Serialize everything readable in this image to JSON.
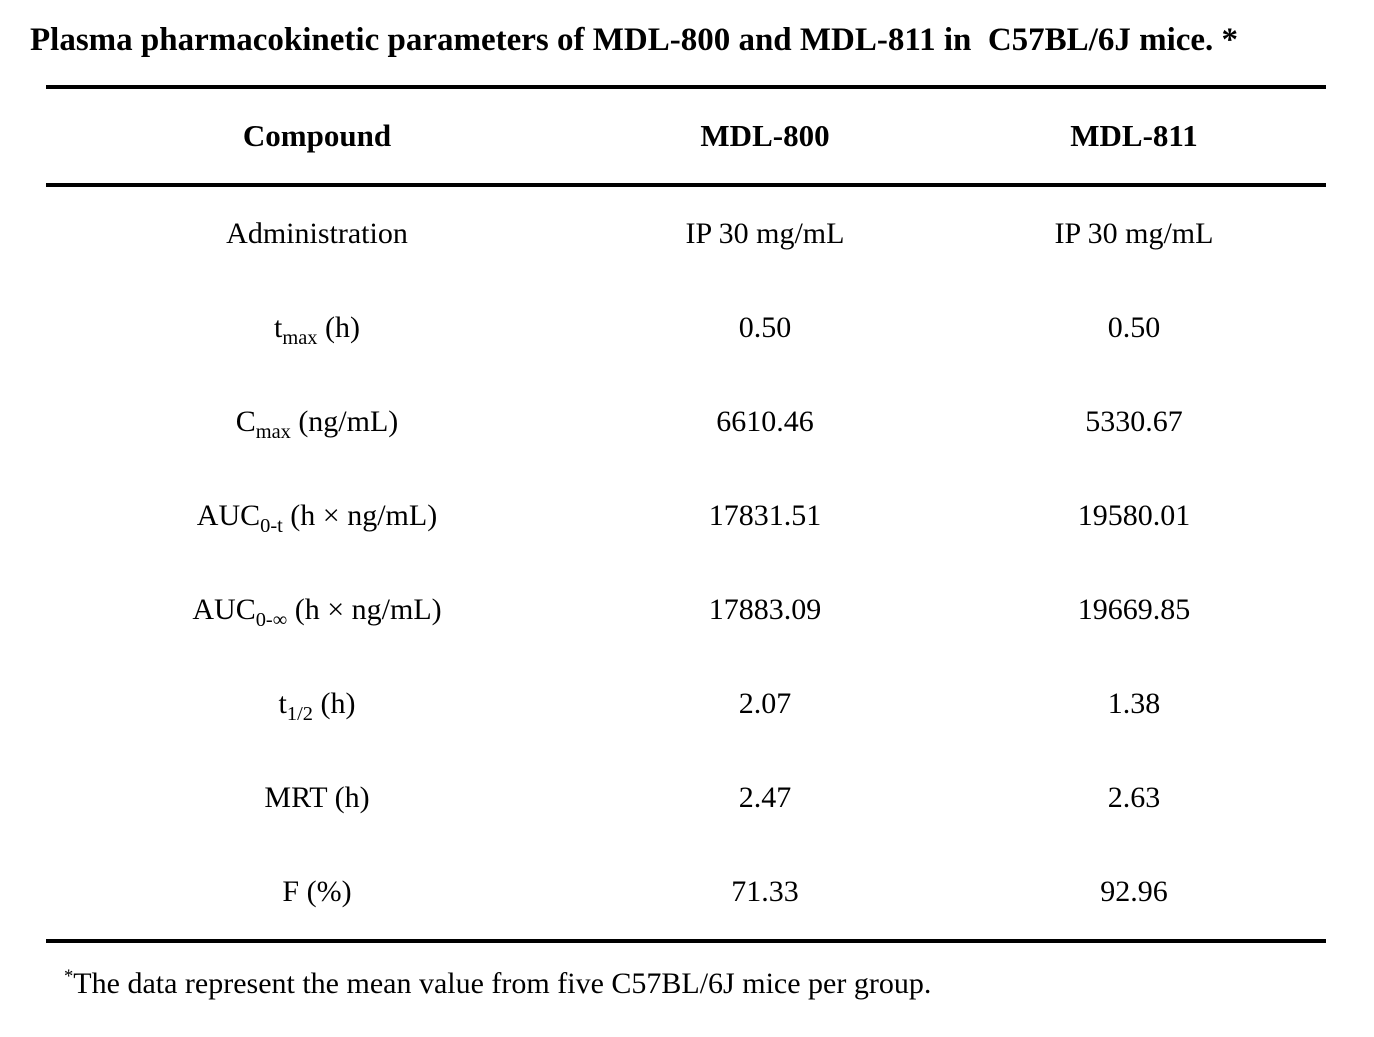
{
  "page": {
    "background_color": "#ffffff",
    "text_color": "#000000"
  },
  "title": "Plasma pharmacokinetic parameters of MDL-800 and MDL-811 in  C57BL/6J mice. *",
  "table": {
    "headers": [
      "Compound",
      "MDL-800",
      "MDL-811"
    ],
    "rows": [
      {
        "label": {
          "pre": "Administration",
          "sub": "",
          "post": ""
        },
        "values": [
          "IP 30 mg/mL",
          "IP 30 mg/mL"
        ]
      },
      {
        "label": {
          "pre": "t",
          "sub": "max",
          "post": " (h)"
        },
        "values": [
          "0.50",
          "0.50"
        ]
      },
      {
        "label": {
          "pre": "C",
          "sub": "max",
          "post": " (ng/mL)"
        },
        "values": [
          "6610.46",
          "5330.67"
        ]
      },
      {
        "label": {
          "pre": "AUC",
          "sub": "0-t",
          "post": " (h × ng/mL)"
        },
        "values": [
          "17831.51",
          "19580.01"
        ]
      },
      {
        "label": {
          "pre": "AUC",
          "sub": "0-∞",
          "post": " (h × ng/mL)"
        },
        "values": [
          "17883.09",
          "19669.85"
        ]
      },
      {
        "label": {
          "pre": "t",
          "sub": "1/2",
          "post": " (h)"
        },
        "values": [
          "2.07",
          "1.38"
        ]
      },
      {
        "label": {
          "pre": "MRT (h)",
          "sub": "",
          "post": ""
        },
        "values": [
          "2.47",
          "2.63"
        ]
      },
      {
        "label": {
          "pre": "F (%)",
          "sub": "",
          "post": ""
        },
        "values": [
          "71.33",
          "92.96"
        ]
      }
    ]
  },
  "footnote": {
    "marker": "*",
    "text": "The data represent the mean value from five C57BL/6J mice per group."
  }
}
